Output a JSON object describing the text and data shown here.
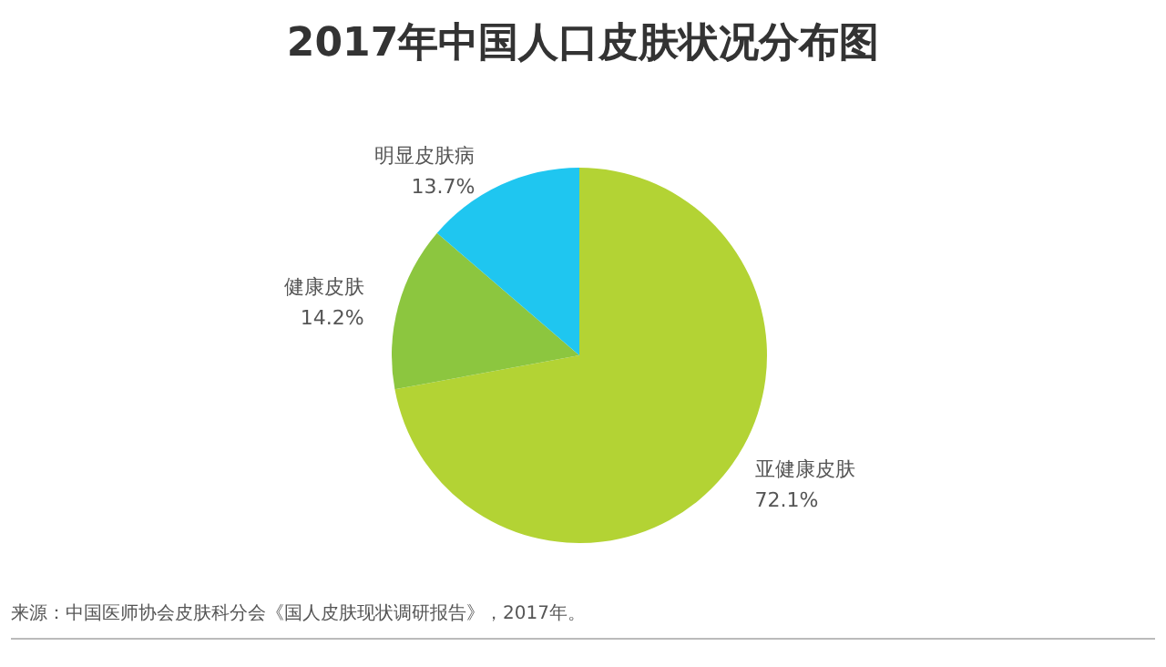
{
  "chart_data": {
    "type": "pie",
    "title": "2017年中国人口皮肤状况分布图",
    "categories": [
      "亚健康皮肤",
      "健康皮肤",
      "明显皮肤病"
    ],
    "values": [
      72.1,
      14.2,
      13.7
    ],
    "colors": [
      "#b3d334",
      "#8cc63f",
      "#1fc6f0"
    ],
    "value_labels": [
      "72.1%",
      "14.2%",
      "13.7%"
    ],
    "annotations": [
      "来源：中国医师协会皮肤科分会《国人皮肤现状调研报告》，2017年。"
    ]
  }
}
